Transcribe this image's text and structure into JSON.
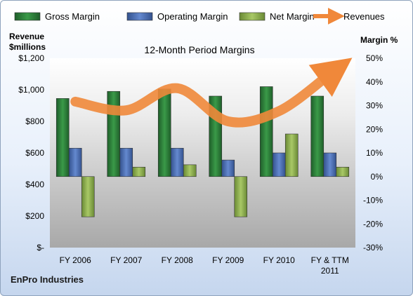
{
  "chart_data": {
    "type": "bar",
    "title": "12-Month Period Margins",
    "company": "EnPro Industries",
    "categories": [
      [
        "FY 2006"
      ],
      [
        "FY 2007"
      ],
      [
        "FY 2008"
      ],
      [
        "FY 2009"
      ],
      [
        "FY 2010"
      ],
      [
        "FY & TTM",
        "2011"
      ]
    ],
    "left_axis": {
      "title": [
        "Revenue",
        "$millions"
      ],
      "ylim": [
        0,
        1200
      ],
      "ticks": [
        0,
        200,
        400,
        600,
        800,
        1000,
        1200
      ],
      "tick_labels": [
        "$-",
        "$200",
        "$400",
        "$600",
        "$800",
        "$1,000",
        "$1,200"
      ]
    },
    "right_axis": {
      "title": "Margin %",
      "ylim": [
        -30,
        50
      ],
      "ticks": [
        -30,
        -20,
        -10,
        0,
        10,
        20,
        30,
        40,
        50
      ],
      "tick_labels": [
        "-30%",
        "-20%",
        "-10%",
        "0%",
        "10%",
        "20%",
        "30%",
        "40%",
        "50%"
      ]
    },
    "series": [
      {
        "name": "Gross Margin",
        "type": "bar",
        "axis": "right",
        "color": "#2e7d3a",
        "values": [
          33,
          36,
          37,
          34,
          38,
          34
        ]
      },
      {
        "name": "Operating Margin",
        "type": "bar",
        "axis": "right",
        "color": "#4a6fb5",
        "values": [
          12,
          12,
          12,
          7,
          10,
          10
        ]
      },
      {
        "name": "Net Margin",
        "type": "bar",
        "axis": "right",
        "color": "#8fb04e",
        "values": [
          -17,
          4,
          5,
          -17,
          18,
          4
        ]
      },
      {
        "name": "Revenues",
        "type": "line",
        "axis": "left",
        "color": "#f0883a",
        "values": [
          925,
          870,
          1010,
          800,
          865,
          1100
        ]
      }
    ],
    "legend_position": "top",
    "grid": false
  }
}
